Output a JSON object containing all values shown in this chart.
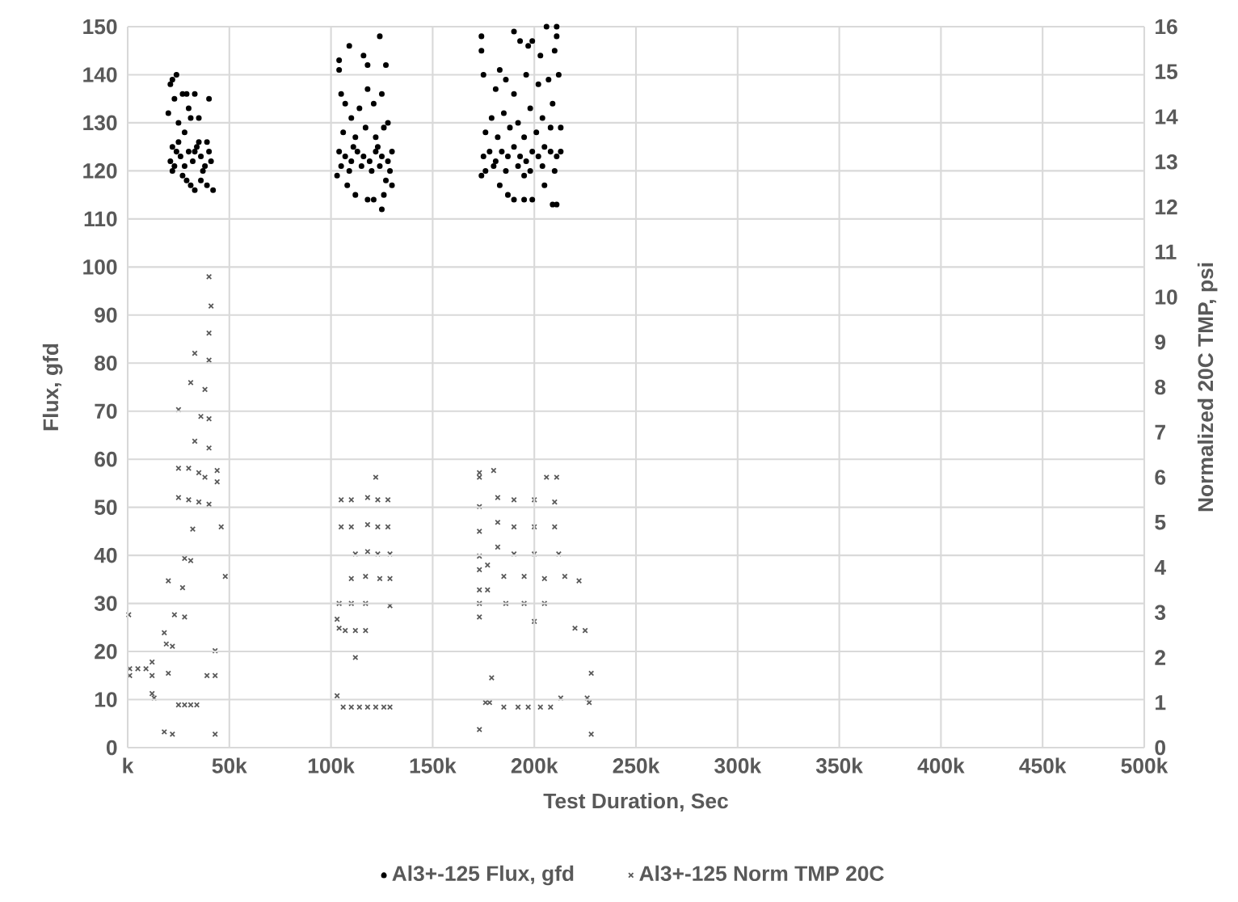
{
  "chart_data": {
    "type": "scatter",
    "xlabel": "Test Duration, Sec",
    "ylabel": "Flux, gfd",
    "y2label": "Normalized 20C TMP, psi",
    "xlim": [
      0,
      500000
    ],
    "xticks": [
      {
        "value": 0,
        "label": "k"
      },
      {
        "value": 50000,
        "label": "50k"
      },
      {
        "value": 100000,
        "label": "100k"
      },
      {
        "value": 150000,
        "label": "150k"
      },
      {
        "value": 200000,
        "label": "200k"
      },
      {
        "value": 250000,
        "label": "250k"
      },
      {
        "value": 300000,
        "label": "300k"
      },
      {
        "value": 350000,
        "label": "350k"
      },
      {
        "value": 400000,
        "label": "400k"
      },
      {
        "value": 450000,
        "label": "450k"
      },
      {
        "value": 500000,
        "label": "500k"
      }
    ],
    "ylim": [
      0,
      150
    ],
    "yticks": [
      0,
      10,
      20,
      30,
      40,
      50,
      60,
      70,
      80,
      90,
      100,
      110,
      120,
      130,
      140,
      150
    ],
    "y2lim": [
      0,
      16
    ],
    "y2ticks": [
      0,
      1,
      2,
      3,
      4,
      5,
      6,
      7,
      8,
      9,
      10,
      11,
      12,
      13,
      14,
      15,
      16
    ],
    "grid": true,
    "legend": "bottom",
    "series": [
      {
        "name": "Al3+-125 Flux, gfd",
        "color": "#000000",
        "marker": "circle",
        "x": [
          20000,
          21000,
          22000,
          24000,
          23000,
          25000,
          27000,
          29000,
          30000,
          28000,
          31000,
          33000,
          35000,
          40000,
          22000,
          22000,
          21000,
          24000,
          26000,
          28000,
          30000,
          32000,
          34000,
          36000,
          38000,
          40000,
          41000,
          27000,
          29000,
          31000,
          33000,
          36000,
          39000,
          42000,
          25000,
          35000,
          39000,
          23000,
          37000,
          33000,
          104000,
          104000,
          109000,
          116000,
          118000,
          124000,
          127000,
          105000,
          107000,
          110000,
          114000,
          118000,
          121000,
          125000,
          128000,
          106000,
          112000,
          117000,
          122000,
          126000,
          104000,
          107000,
          110000,
          113000,
          116000,
          119000,
          122000,
          125000,
          128000,
          130000,
          105000,
          109000,
          115000,
          120000,
          124000,
          129000,
          103000,
          108000,
          112000,
          118000,
          121000,
          126000,
          130000,
          125000,
          127000,
          111000,
          123000,
          174000,
          174000,
          175000,
          183000,
          190000,
          193000,
          197000,
          199000,
          206000,
          211000,
          211000,
          210000,
          203000,
          181000,
          186000,
          190000,
          196000,
          202000,
          207000,
          212000,
          179000,
          185000,
          192000,
          198000,
          204000,
          209000,
          176000,
          182000,
          188000,
          195000,
          201000,
          208000,
          213000,
          175000,
          178000,
          181000,
          184000,
          187000,
          190000,
          193000,
          196000,
          199000,
          202000,
          205000,
          208000,
          211000,
          213000,
          176000,
          180000,
          186000,
          192000,
          198000,
          204000,
          210000,
          183000,
          187000,
          190000,
          195000,
          199000,
          205000,
          209000,
          211000,
          174000,
          195000
        ],
        "values": [
          132,
          138,
          139,
          140,
          135,
          130,
          136,
          136,
          133,
          128,
          131,
          136,
          131,
          135,
          125,
          120,
          122,
          124,
          123,
          121,
          124,
          122,
          125,
          123,
          121,
          124,
          122,
          119,
          118,
          117,
          116,
          118,
          117,
          116,
          126,
          126,
          126,
          121,
          120,
          124,
          141,
          143,
          146,
          144,
          142,
          148,
          142,
          136,
          134,
          131,
          133,
          137,
          134,
          136,
          130,
          128,
          127,
          129,
          127,
          129,
          124,
          123,
          122,
          124,
          123,
          122,
          124,
          123,
          122,
          124,
          121,
          120,
          121,
          120,
          121,
          120,
          119,
          117,
          115,
          114,
          114,
          115,
          117,
          112,
          118,
          125,
          125,
          148,
          145,
          140,
          141,
          149,
          147,
          146,
          147,
          150,
          150,
          148,
          145,
          144,
          137,
          139,
          136,
          140,
          138,
          139,
          140,
          131,
          132,
          130,
          133,
          131,
          134,
          128,
          127,
          129,
          127,
          128,
          129,
          129,
          123,
          124,
          122,
          124,
          123,
          125,
          123,
          122,
          124,
          123,
          125,
          124,
          123,
          124,
          120,
          121,
          120,
          121,
          120,
          121,
          120,
          117,
          115,
          114,
          114,
          114,
          117,
          113,
          113,
          119,
          119
        ]
      },
      {
        "name": "Al3+-125 Norm TMP 20C",
        "color": "#595959",
        "marker": "cross",
        "axis": "y2",
        "x": [
          40000,
          41000,
          40000,
          40000,
          33000,
          38000,
          31000,
          36000,
          25000,
          40000,
          33000,
          40000,
          25000,
          30000,
          35000,
          38000,
          44000,
          44000,
          25000,
          30000,
          35000,
          40000,
          46000,
          32000,
          28000,
          31000,
          27000,
          48000,
          20000,
          23000,
          28000,
          500,
          18000,
          19000,
          22000,
          1000,
          5000,
          9000,
          12000,
          1000,
          12000,
          20000,
          43000,
          39000,
          43000,
          12000,
          13000,
          25000,
          28000,
          31000,
          34000,
          18000,
          22000,
          43000,
          122000,
          105000,
          110000,
          118000,
          123000,
          128000,
          105000,
          110000,
          118000,
          123000,
          128000,
          112000,
          118000,
          123000,
          129000,
          110000,
          117000,
          124000,
          129000,
          104000,
          110000,
          117000,
          129000,
          103000,
          104000,
          107000,
          112000,
          117000,
          112000,
          103000,
          106000,
          110000,
          114000,
          118000,
          122000,
          126000,
          129000,
          173000,
          173000,
          180000,
          206000,
          211000,
          173000,
          173000,
          182000,
          190000,
          200000,
          210000,
          182000,
          190000,
          200000,
          210000,
          182000,
          190000,
          200000,
          212000,
          173000,
          173000,
          177000,
          173000,
          185000,
          195000,
          205000,
          215000,
          222000,
          177000,
          173000,
          186000,
          195000,
          205000,
          173000,
          200000,
          220000,
          225000,
          179000,
          176000,
          178000,
          185000,
          192000,
          197000,
          203000,
          208000,
          213000,
          226000,
          228000,
          227000,
          173000,
          228000
        ],
        "values": [
          10.45,
          9.8,
          9.2,
          8.6,
          8.75,
          7.95,
          8.1,
          7.35,
          7.5,
          7.3,
          6.8,
          6.65,
          6.2,
          6.2,
          6.1,
          6.0,
          6.15,
          5.9,
          5.55,
          5.5,
          5.45,
          5.4,
          4.9,
          4.85,
          4.2,
          4.15,
          3.55,
          3.8,
          3.7,
          2.95,
          2.9,
          2.95,
          2.55,
          2.3,
          2.25,
          1.75,
          1.75,
          1.75,
          1.9,
          1.6,
          1.6,
          1.65,
          2.15,
          1.6,
          1.6,
          1.2,
          1.1,
          0.95,
          0.95,
          0.95,
          0.95,
          0.35,
          0.3,
          0.3,
          6.0,
          5.5,
          5.5,
          5.55,
          5.5,
          5.5,
          4.9,
          4.9,
          4.95,
          4.9,
          4.9,
          4.3,
          4.35,
          4.3,
          4.3,
          3.75,
          3.8,
          3.75,
          3.75,
          3.2,
          3.2,
          3.2,
          3.15,
          2.85,
          2.65,
          2.6,
          2.6,
          2.6,
          2.0,
          1.15,
          0.9,
          0.9,
          0.9,
          0.9,
          0.9,
          0.9,
          0.9,
          6.1,
          6.0,
          6.15,
          6.0,
          6.0,
          5.35,
          4.8,
          5.55,
          5.5,
          5.5,
          5.45,
          5.0,
          4.9,
          4.9,
          4.9,
          4.45,
          4.3,
          4.3,
          4.3,
          4.25,
          3.95,
          4.05,
          3.5,
          3.8,
          3.8,
          3.75,
          3.8,
          3.7,
          3.5,
          3.2,
          3.2,
          3.2,
          3.2,
          2.9,
          2.8,
          2.65,
          2.6,
          1.55,
          1.0,
          1.0,
          0.9,
          0.9,
          0.9,
          0.9,
          0.9,
          1.1,
          1.1,
          1.65,
          1.0,
          0.4,
          0.3
        ]
      }
    ]
  }
}
